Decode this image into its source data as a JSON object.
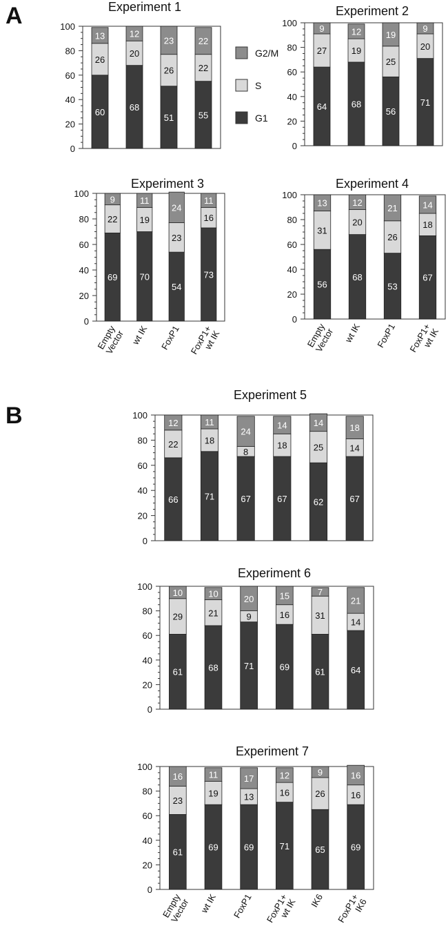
{
  "panel_labels": [
    "A",
    "B"
  ],
  "colors": {
    "G1": "#3b3b3b",
    "S": "#d9d9d9",
    "G2M": "#8c8c8c",
    "axis": "#333333"
  },
  "legend": {
    "items": [
      "G2/M",
      "S",
      "G1"
    ]
  },
  "chart_data": [
    {
      "type": "bar",
      "stacked": true,
      "title": "Experiment 1",
      "categories": [
        "Empty Vector",
        "wt IK",
        "FoxP1",
        "FoxP1+ wt IK"
      ],
      "show_categories": false,
      "ylim": [
        0,
        100
      ],
      "yticks": [
        0,
        20,
        40,
        60,
        80,
        100
      ],
      "series": [
        {
          "name": "G1",
          "values": [
            60,
            68,
            51,
            55
          ]
        },
        {
          "name": "S",
          "values": [
            26,
            20,
            26,
            22
          ]
        },
        {
          "name": "G2/M",
          "values": [
            13,
            12,
            23,
            22
          ]
        }
      ]
    },
    {
      "type": "bar",
      "stacked": true,
      "title": "Experiment 2",
      "categories": [
        "Empty Vector",
        "wt IK",
        "FoxP1",
        "FoxP1+ wt IK"
      ],
      "show_categories": false,
      "ylim": [
        0,
        100
      ],
      "yticks": [
        0,
        20,
        40,
        60,
        80,
        100
      ],
      "series": [
        {
          "name": "G1",
          "values": [
            64,
            68,
            56,
            71
          ]
        },
        {
          "name": "S",
          "values": [
            27,
            19,
            25,
            20
          ]
        },
        {
          "name": "G2/M",
          "values": [
            9,
            12,
            19,
            9
          ]
        }
      ]
    },
    {
      "type": "bar",
      "stacked": true,
      "title": "Experiment 3",
      "categories": [
        "Empty Vector",
        "wt IK",
        "FoxP1",
        "FoxP1+ wt IK"
      ],
      "show_categories": true,
      "ylim": [
        0,
        100
      ],
      "yticks": [
        0,
        20,
        40,
        60,
        80,
        100
      ],
      "series": [
        {
          "name": "G1",
          "values": [
            69,
            70,
            54,
            73
          ]
        },
        {
          "name": "S",
          "values": [
            22,
            19,
            23,
            16
          ]
        },
        {
          "name": "G2/M",
          "values": [
            9,
            11,
            24,
            11
          ]
        }
      ]
    },
    {
      "type": "bar",
      "stacked": true,
      "title": "Experiment 4",
      "categories": [
        "Empty Vector",
        "wt IK",
        "FoxP1",
        "FoxP1+ wt IK"
      ],
      "show_categories": true,
      "ylim": [
        0,
        100
      ],
      "yticks": [
        0,
        20,
        40,
        60,
        80,
        100
      ],
      "series": [
        {
          "name": "G1",
          "values": [
            56,
            68,
            53,
            67
          ]
        },
        {
          "name": "S",
          "values": [
            31,
            20,
            26,
            18
          ]
        },
        {
          "name": "G2/M",
          "values": [
            13,
            12,
            21,
            14
          ]
        }
      ]
    },
    {
      "type": "bar",
      "stacked": true,
      "title": "Experiment 5",
      "categories": [
        "Empty Vector",
        "wt IK",
        "FoxP1",
        "FoxP1+ wt IK",
        "IK6",
        "FoxP1+ IK6"
      ],
      "show_categories": false,
      "ylim": [
        0,
        100
      ],
      "yticks": [
        0,
        20,
        40,
        60,
        80,
        100
      ],
      "series": [
        {
          "name": "G1",
          "values": [
            66,
            71,
            67,
            67,
            62,
            67
          ]
        },
        {
          "name": "S",
          "values": [
            22,
            18,
            8,
            18,
            25,
            14
          ]
        },
        {
          "name": "G2/M",
          "values": [
            12,
            11,
            24,
            14,
            14,
            18
          ]
        }
      ]
    },
    {
      "type": "bar",
      "stacked": true,
      "title": "Experiment 6",
      "categories": [
        "Empty Vector",
        "wt IK",
        "FoxP1",
        "FoxP1+ wt IK",
        "IK6",
        "FoxP1+ IK6"
      ],
      "show_categories": false,
      "ylim": [
        0,
        100
      ],
      "yticks": [
        0,
        20,
        40,
        60,
        80,
        100
      ],
      "series": [
        {
          "name": "G1",
          "values": [
            61,
            68,
            71,
            69,
            61,
            64
          ]
        },
        {
          "name": "S",
          "values": [
            29,
            21,
            9,
            16,
            31,
            14
          ]
        },
        {
          "name": "G2/M",
          "values": [
            10,
            10,
            20,
            15,
            7,
            21
          ]
        }
      ]
    },
    {
      "type": "bar",
      "stacked": true,
      "title": "Experiment 7",
      "categories": [
        "Empty Vector",
        "wt IK",
        "FoxP1",
        "FoxP1+ wt IK",
        "IK6",
        "FoxP1+ IK6"
      ],
      "show_categories": true,
      "ylim": [
        0,
        100
      ],
      "yticks": [
        0,
        20,
        40,
        60,
        80,
        100
      ],
      "series": [
        {
          "name": "G1",
          "values": [
            61,
            69,
            69,
            71,
            65,
            69
          ]
        },
        {
          "name": "S",
          "values": [
            23,
            19,
            13,
            16,
            26,
            16
          ]
        },
        {
          "name": "G2/M",
          "values": [
            16,
            11,
            17,
            12,
            9,
            16
          ]
        }
      ]
    }
  ]
}
